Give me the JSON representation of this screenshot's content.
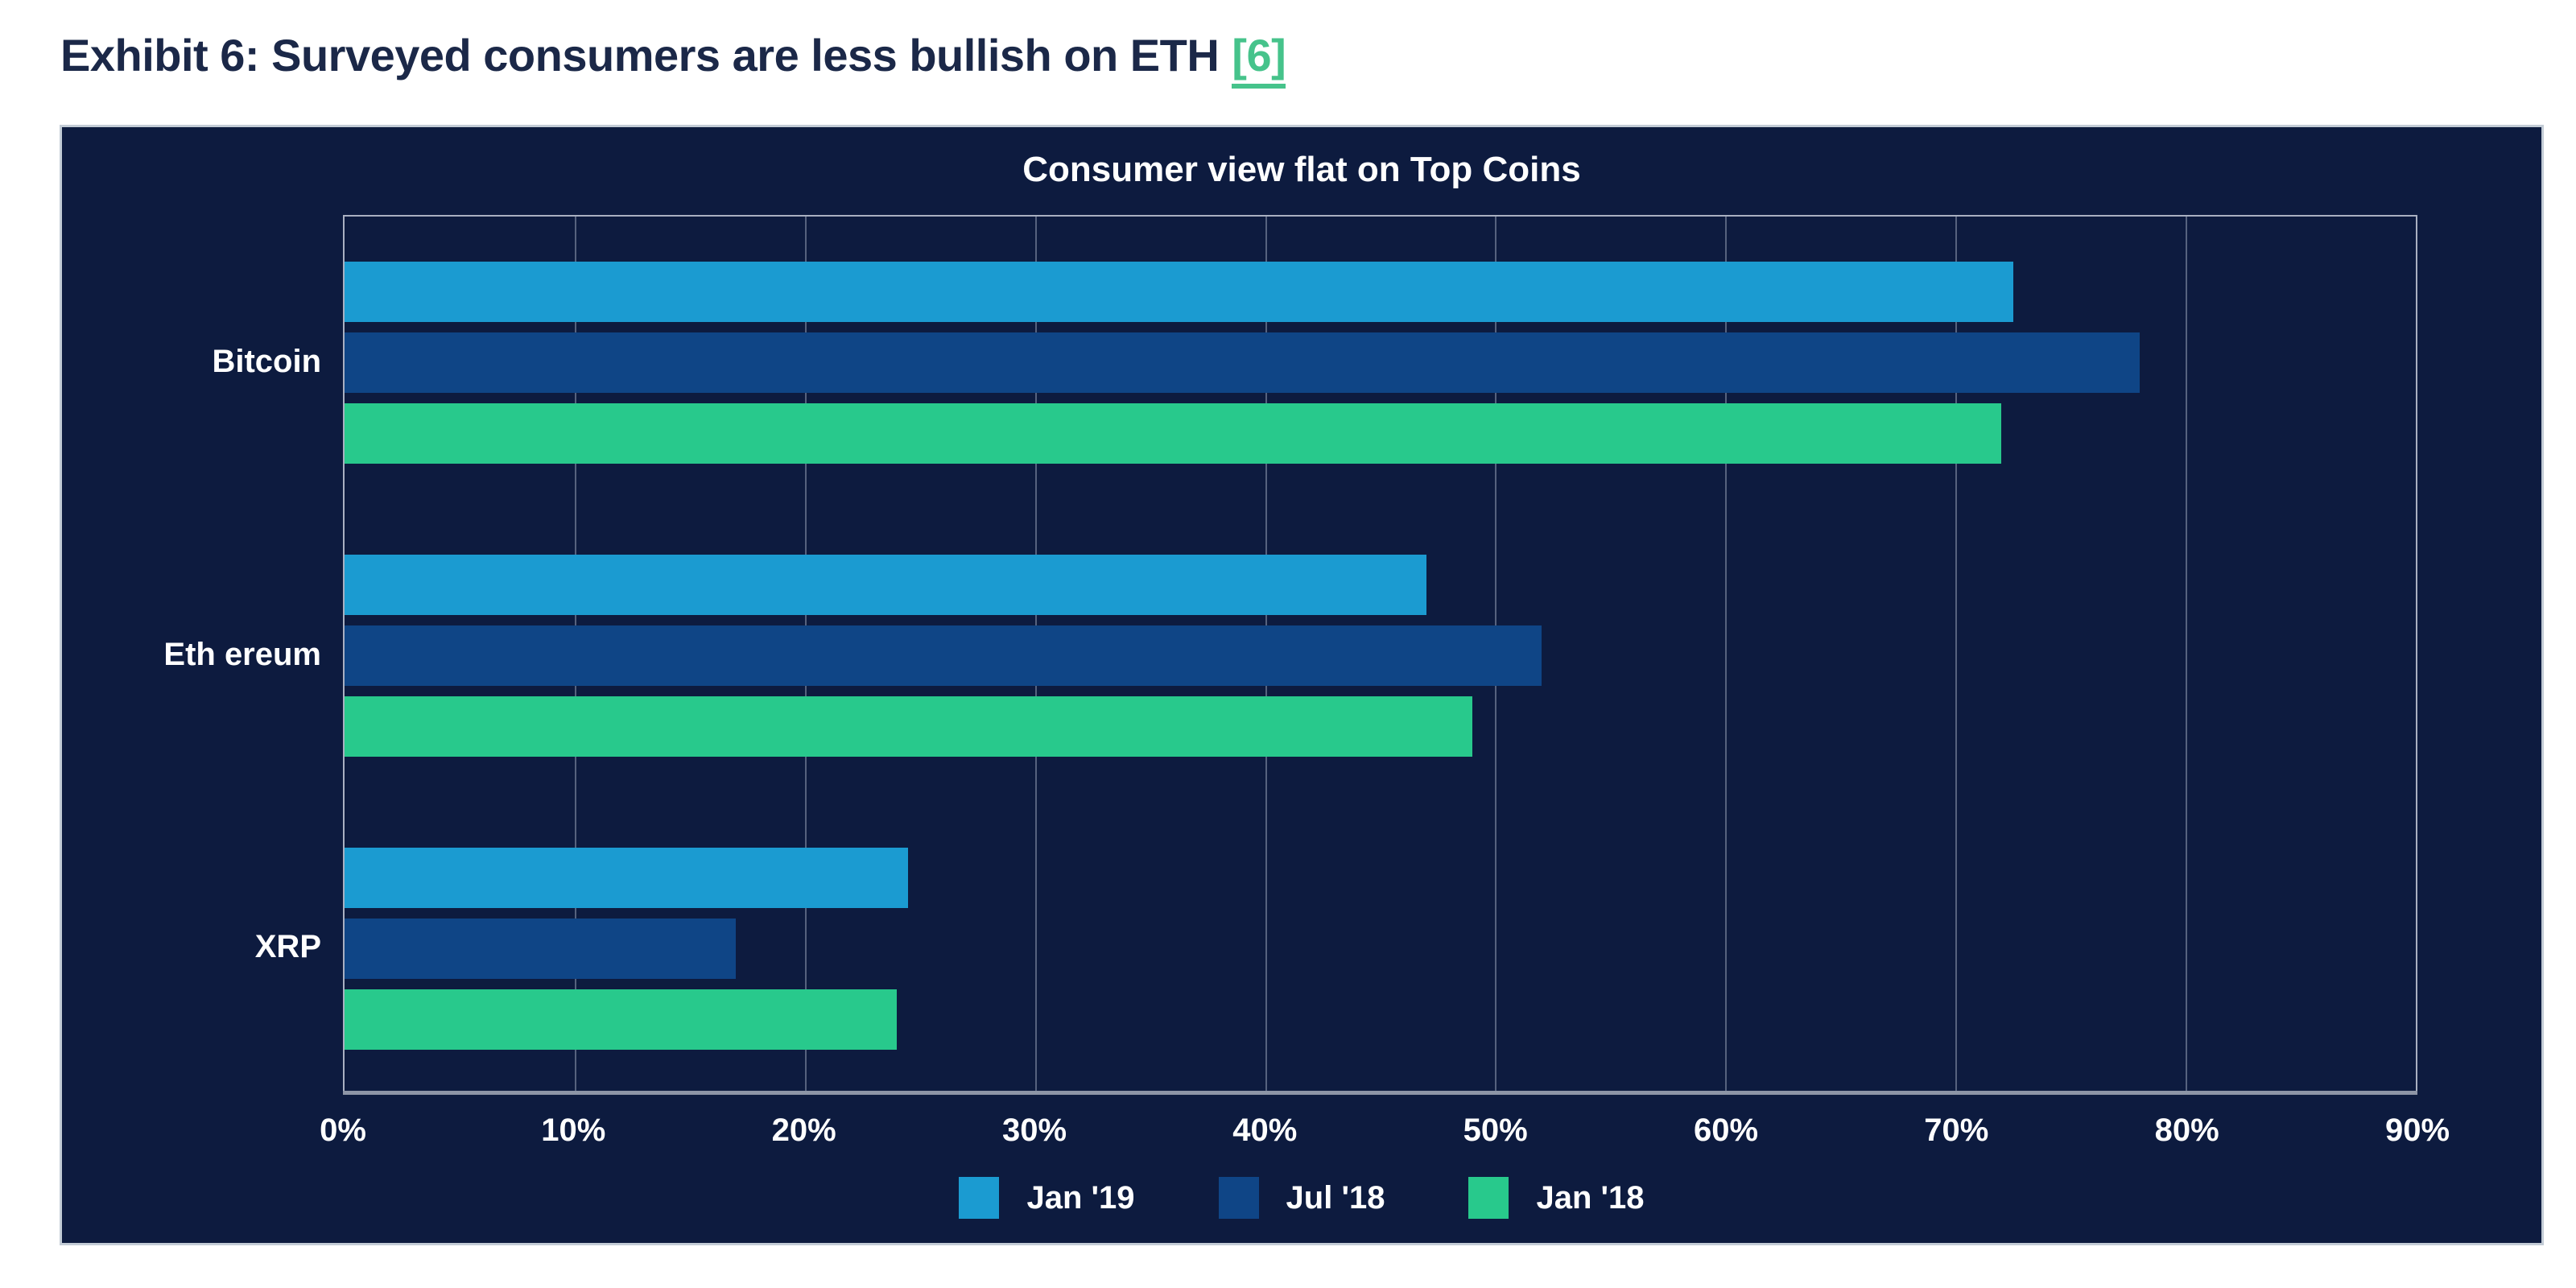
{
  "heading": {
    "text": "Exhibit 6: Surveyed consumers are less bullish on ETH",
    "link_label": "[6]"
  },
  "colors": {
    "heading_navy": "#1b2848",
    "link_green": "#46c38b",
    "panel_bg": "#0d1b3f",
    "panel_border": "#c3ccd6",
    "grid_gray": "#cdd7e6",
    "axis_line_gray": "#8d95a6",
    "text_white": "#ffffff",
    "series_jan19_blue": "#1b9bd1",
    "series_jul18_darkblue": "#0f4586",
    "series_jan18_green": "#28c98c"
  },
  "chart_data": {
    "type": "bar",
    "orientation": "horizontal",
    "title": "Consumer view flat on Top Coins",
    "categories": [
      "Bitcoin",
      "Eth ereum",
      "XRP"
    ],
    "series": [
      {
        "name": "Jan '19",
        "color": "#1b9bd1",
        "values": [
          72.5,
          47,
          24.5
        ]
      },
      {
        "name": "Jul '18",
        "color": "#0f4586",
        "values": [
          78,
          52,
          17
        ]
      },
      {
        "name": "Jan '18",
        "color": "#28c98c",
        "values": [
          72,
          49,
          24
        ]
      }
    ],
    "xlabel": "",
    "ylabel": "",
    "xlim": [
      0,
      90
    ],
    "x_tick_step": 10,
    "x_tick_labels": [
      "0%",
      "10%",
      "20%",
      "30%",
      "40%",
      "50%",
      "60%",
      "70%",
      "80%",
      "90%"
    ],
    "grid": true,
    "legend_position": "bottom"
  }
}
